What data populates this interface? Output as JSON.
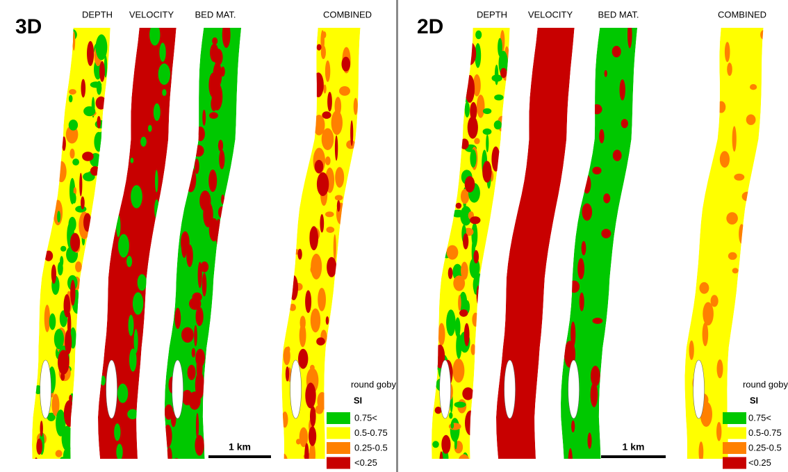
{
  "panels": [
    {
      "label": "3D",
      "columns": [
        "DEPTH",
        "VELOCITY",
        "BED MAT.",
        "COMBINED"
      ],
      "legend": {
        "title": "round goby",
        "subtitle": "SI",
        "items": [
          {
            "label": "0.75<",
            "color": "#00c800"
          },
          {
            "label": "0.5-0.75",
            "color": "#ffff00"
          },
          {
            "label": "0.25-0.5",
            "color": "#ff8000"
          },
          {
            "label": "<0.25",
            "color": "#c80000"
          }
        ]
      },
      "scale_bar": "1 km"
    },
    {
      "label": "2D",
      "columns": [
        "DEPTH",
        "VELOCITY",
        "BED MAT.",
        "COMBINED"
      ],
      "legend": {
        "title": "round goby",
        "subtitle": "SI",
        "items": [
          {
            "label": "0.75<",
            "color": "#00c800"
          },
          {
            "label": "0.5-0.75",
            "color": "#ffff00"
          },
          {
            "label": "0.25-0.5",
            "color": "#ff8000"
          },
          {
            "label": "<0.25",
            "color": "#c80000"
          }
        ]
      },
      "scale_bar": "1 km"
    }
  ]
}
